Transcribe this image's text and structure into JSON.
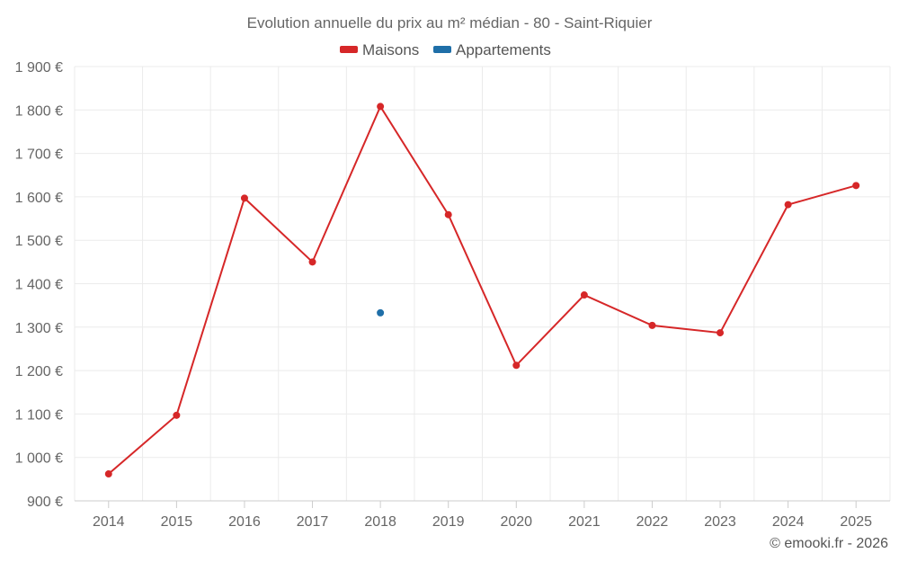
{
  "chart_data": {
    "type": "line",
    "title": "Evolution annuelle du prix au m² médian - 80 - Saint-Riquier",
    "xlabel": "",
    "ylabel": "",
    "categories": [
      "2014",
      "2015",
      "2016",
      "2017",
      "2018",
      "2019",
      "2020",
      "2021",
      "2022",
      "2023",
      "2024",
      "2025"
    ],
    "ylim": [
      900,
      1900
    ],
    "yticks": [
      900,
      1000,
      1100,
      1200,
      1300,
      1400,
      1500,
      1600,
      1700,
      1800,
      1900
    ],
    "ytick_labels": [
      "900 €",
      "1 000 €",
      "1 100 €",
      "1 200 €",
      "1 300 €",
      "1 400 €",
      "1 500 €",
      "1 600 €",
      "1 700 €",
      "1 800 €",
      "1 900 €"
    ],
    "grid": true,
    "legend_position": "top-center",
    "series": [
      {
        "name": "Maisons",
        "color": "#d62728",
        "values": [
          962,
          1097,
          1597,
          1450,
          1808,
          1559,
          1212,
          1374,
          1304,
          1287,
          1582,
          1626
        ]
      },
      {
        "name": "Appartements",
        "color": "#1f6fa8",
        "values": [
          null,
          null,
          null,
          null,
          1333,
          null,
          null,
          null,
          null,
          null,
          null,
          null
        ]
      }
    ]
  },
  "credit": "© emooki.fr - 2026"
}
